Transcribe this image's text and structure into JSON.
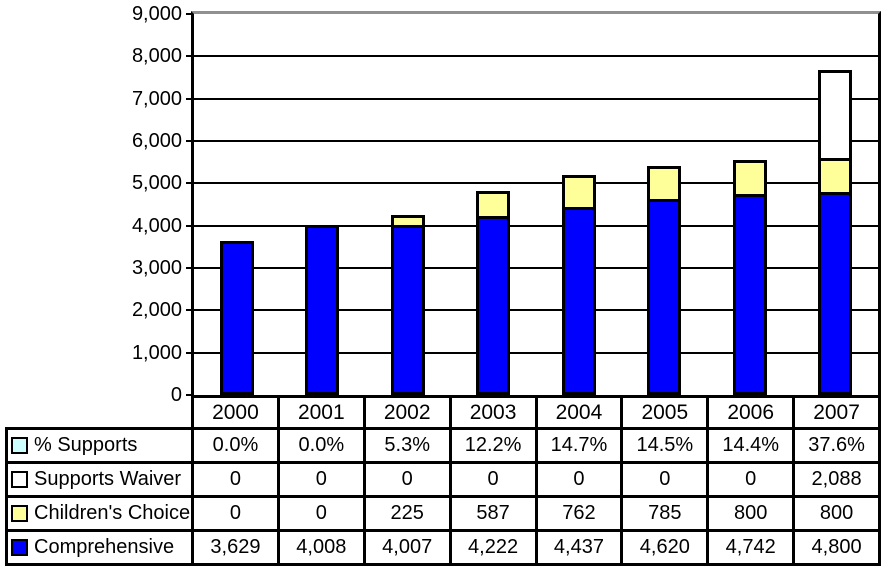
{
  "chart_data": {
    "type": "bar",
    "stacked": true,
    "title": "",
    "xlabel": "",
    "ylabel": "",
    "categories": [
      "2000",
      "2001",
      "2002",
      "2003",
      "2004",
      "2005",
      "2006",
      "2007"
    ],
    "series": [
      {
        "name": "Comprehensive",
        "color": "#0000FF",
        "values": [
          3629,
          4008,
          4007,
          4222,
          4437,
          4620,
          4742,
          4800
        ]
      },
      {
        "name": "Children's Choice",
        "color": "#FFFF99",
        "values": [
          0,
          0,
          225,
          587,
          762,
          785,
          800,
          800
        ]
      },
      {
        "name": "Supports Waiver",
        "color": "#FFFFFF",
        "values": [
          0,
          0,
          0,
          0,
          0,
          0,
          0,
          2088
        ]
      }
    ],
    "percent_series": {
      "name": "% Supports",
      "color": "#CCFFFF",
      "values": [
        "0.0%",
        "0.0%",
        "5.3%",
        "12.2%",
        "14.7%",
        "14.5%",
        "14.4%",
        "37.6%"
      ]
    },
    "ylim": [
      0,
      9000
    ],
    "ytick_interval": 1000,
    "ytick_labels": [
      "9,000",
      "8,000",
      "7,000",
      "6,000",
      "5,000",
      "4,000",
      "3,000",
      "2,000",
      "1,000",
      "0"
    ],
    "grid": true,
    "legend_position": "table-left",
    "colors": {
      "gridline": "#000000",
      "axis": "#000000",
      "plot_top_border": "#909090",
      "bar_border": "#000000",
      "table_border": "#000000"
    }
  },
  "table": {
    "columns": [
      "2000",
      "2001",
      "2002",
      "2003",
      "2004",
      "2005",
      "2006",
      "2007"
    ],
    "rows": [
      {
        "label": "% Supports",
        "marker_color": "#CCFFFF",
        "values": [
          "0.0%",
          "0.0%",
          "5.3%",
          "12.2%",
          "14.7%",
          "14.5%",
          "14.4%",
          "37.6%"
        ]
      },
      {
        "label": "Supports Waiver",
        "marker_color": "#FFFFFF",
        "values": [
          "0",
          "0",
          "0",
          "0",
          "0",
          "0",
          "0",
          "2,088"
        ]
      },
      {
        "label": "Children's Choice",
        "marker_color": "#FFFF99",
        "values": [
          "0",
          "0",
          "225",
          "587",
          "762",
          "785",
          "800",
          "800"
        ]
      },
      {
        "label": "Comprehensive",
        "marker_color": "#0000FF",
        "values": [
          "3,629",
          "4,008",
          "4,007",
          "4,222",
          "4,437",
          "4,620",
          "4,742",
          "4,800"
        ]
      }
    ]
  }
}
